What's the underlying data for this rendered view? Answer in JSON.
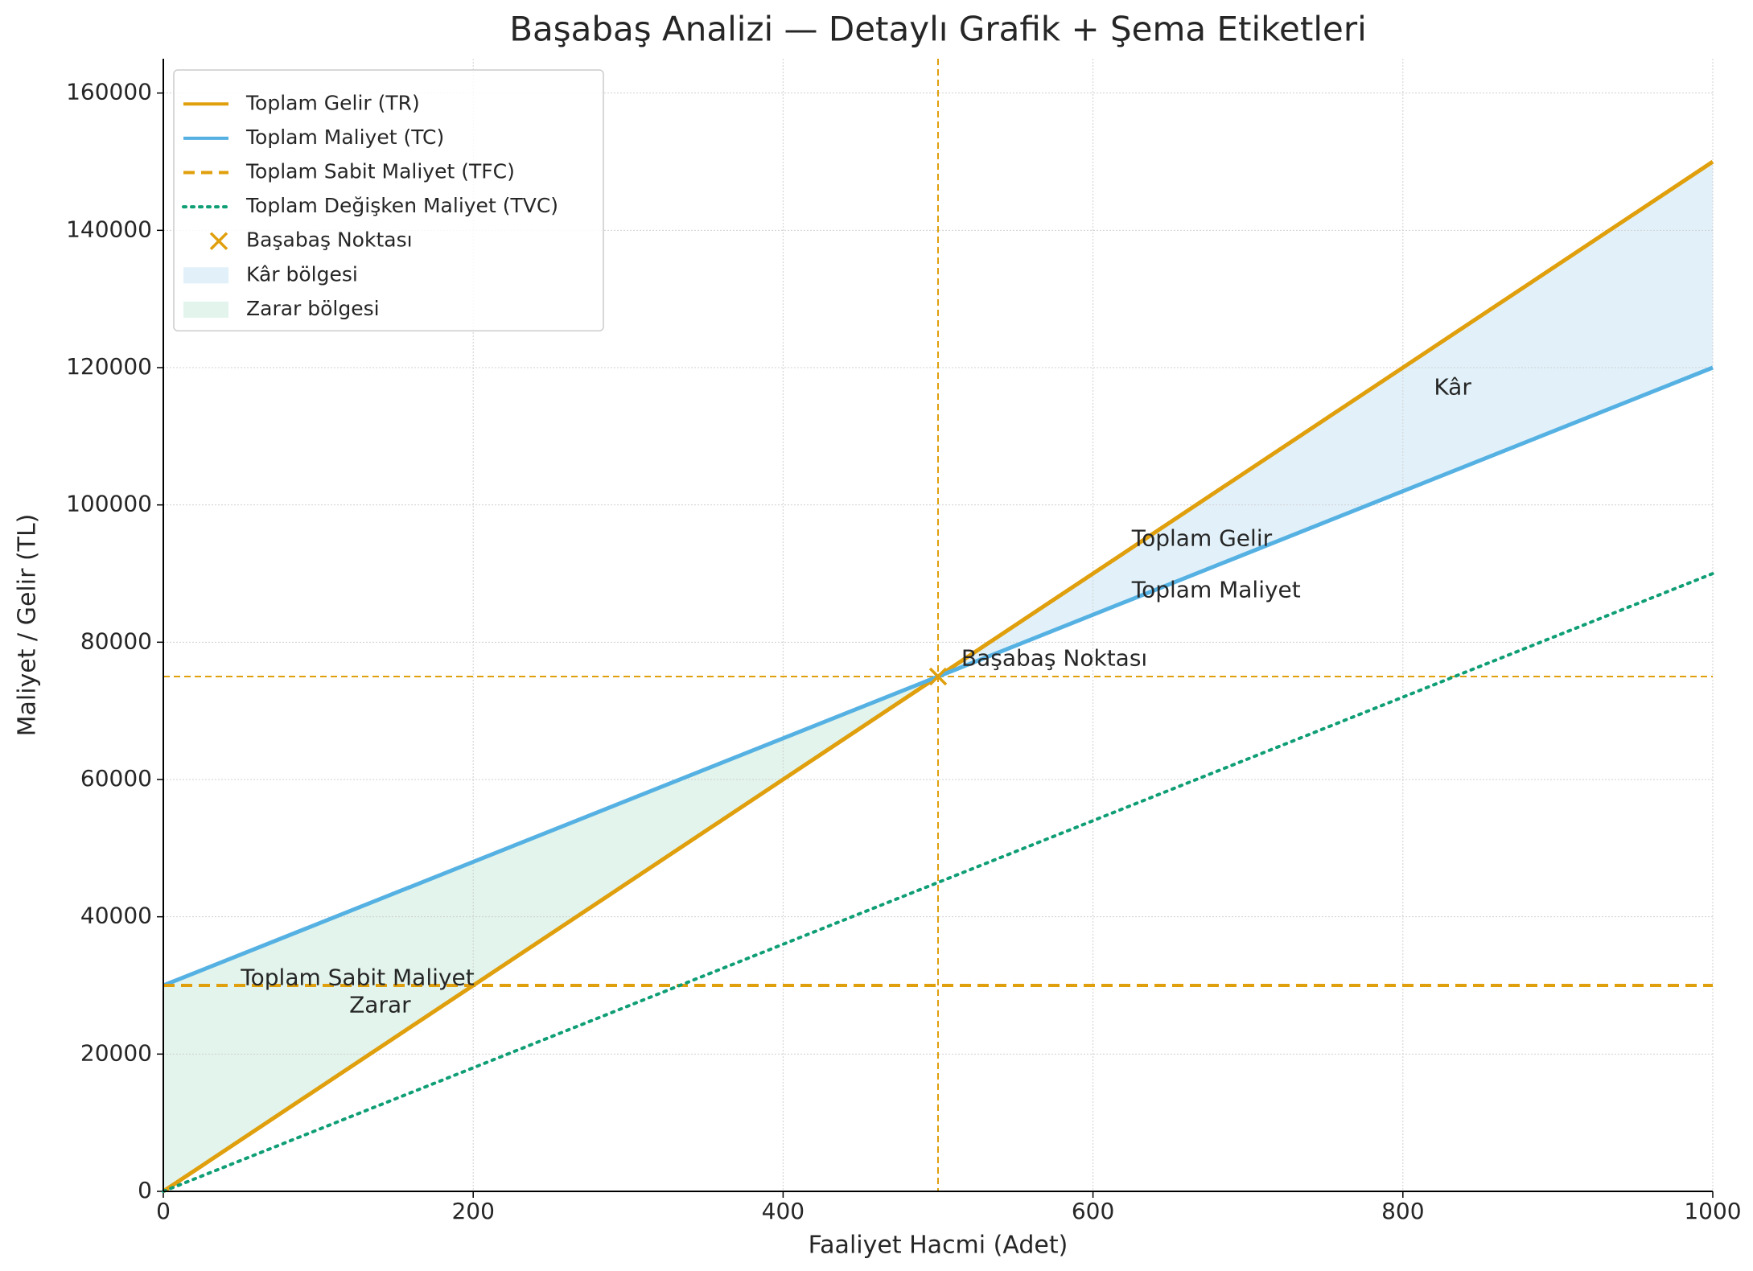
{
  "chart_data": {
    "type": "line",
    "title": "Başabaş Analizi — Detaylı Grafik + Şema Etiketleri",
    "xlabel": "Faaliyet Hacmi (Adet)",
    "ylabel": "Maliyet / Gelir (TL)",
    "x": [
      0,
      500,
      1000
    ],
    "series": [
      {
        "name": "Toplam Gelir (TR)",
        "color": "#e09f0c",
        "style": "solid",
        "values": [
          0,
          75000,
          150000
        ]
      },
      {
        "name": "Toplam Maliyet (TC)",
        "color": "#56b1e3",
        "style": "solid",
        "values": [
          30000,
          75000,
          120000
        ]
      },
      {
        "name": "Toplam Sabit Maliyet (TFC)",
        "color": "#e09f0c",
        "style": "dashed",
        "values": [
          30000,
          30000,
          30000
        ]
      },
      {
        "name": "Toplam Değişken Maliyet (TVC)",
        "color": "#0f9e75",
        "style": "dotted",
        "values": [
          0,
          45000,
          90000
        ]
      }
    ],
    "break_even": {
      "name": "Başabaş Noktası",
      "color": "#e09f0c",
      "x": 500,
      "y": 75000
    },
    "fills": [
      {
        "name": "Kâr bölgesi",
        "color": "#e2f1f9"
      },
      {
        "name": "Zarar bölgesi",
        "color": "#e2f4ec"
      }
    ],
    "annotations": [
      "Kâr",
      "Toplam Gelir",
      "Toplam Maliyet",
      "Başabaş Noktası",
      "Toplam Sabit Maliyet",
      "Zarar"
    ],
    "xlim": [
      0,
      1000
    ],
    "ylim": [
      0,
      165000
    ],
    "xticks": [
      0,
      200,
      400,
      600,
      800,
      1000
    ],
    "yticks": [
      0,
      20000,
      40000,
      60000,
      80000,
      100000,
      120000,
      140000,
      160000
    ],
    "grid": true,
    "legend": "upper left"
  }
}
